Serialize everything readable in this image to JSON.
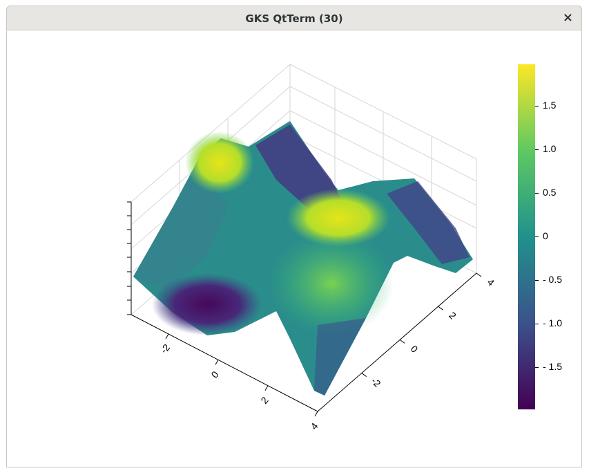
{
  "window": {
    "title": "GKS QtTerm (30)",
    "close": "×"
  },
  "chart_data": {
    "type": "surface",
    "xlim": [
      -3.5,
      4
    ],
    "xticks": [
      -2,
      0,
      2,
      4
    ],
    "ylim": [
      -4.3,
      4
    ],
    "yticks": [
      -2,
      0,
      2,
      4
    ],
    "colorbar": {
      "lim": [
        -1.98,
        1.98
      ],
      "ticks": [
        {
          "value": 1.5,
          "label": "1.5"
        },
        {
          "value": 1,
          "label": "1.0"
        },
        {
          "value": 0.5,
          "label": "0.5"
        },
        0,
        {
          "value": -0.5,
          "label": "- 0.5"
        },
        {
          "value": -1,
          "label": "- 1.0"
        },
        {
          "value": -1.5,
          "label": "- 1.5"
        }
      ]
    }
  }
}
